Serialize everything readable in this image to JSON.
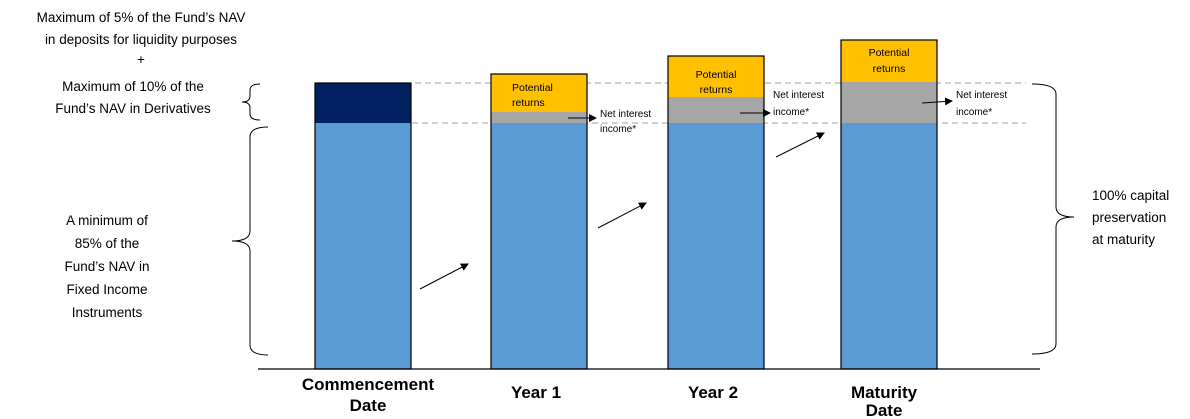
{
  "left_notes": {
    "deposits": [
      "Maximum of 5% of the Fund’s NAV",
      "in deposits for liquidity purposes"
    ],
    "plus": "+",
    "derivatives": [
      "Maximum of 10% of the",
      "Fund’s NAV in Derivatives"
    ],
    "fixed_income": [
      "A minimum of",
      "85% of the",
      "Fund’s NAV in",
      "Fixed Income",
      "Instruments"
    ]
  },
  "right_note": [
    "100% capital",
    "preservation",
    "at maturity"
  ],
  "chart_data": {
    "type": "bar",
    "stacked": true,
    "categories": [
      [
        "Commencement",
        "Date"
      ],
      [
        "Year 1"
      ],
      [
        "Year 2"
      ],
      [
        "Maturity",
        "Date"
      ]
    ],
    "segment_labels": {
      "potential_returns": [
        "Potential",
        "returns"
      ],
      "net_interest_income": [
        "Net interest",
        "income*"
      ]
    },
    "colors": {
      "fixed_income": "#5b9bd5",
      "derivatives_deposits": "#002060",
      "net_interest_income": "#a6a6a6",
      "potential_returns": "#ffc000",
      "outline": "#000000"
    }
  }
}
